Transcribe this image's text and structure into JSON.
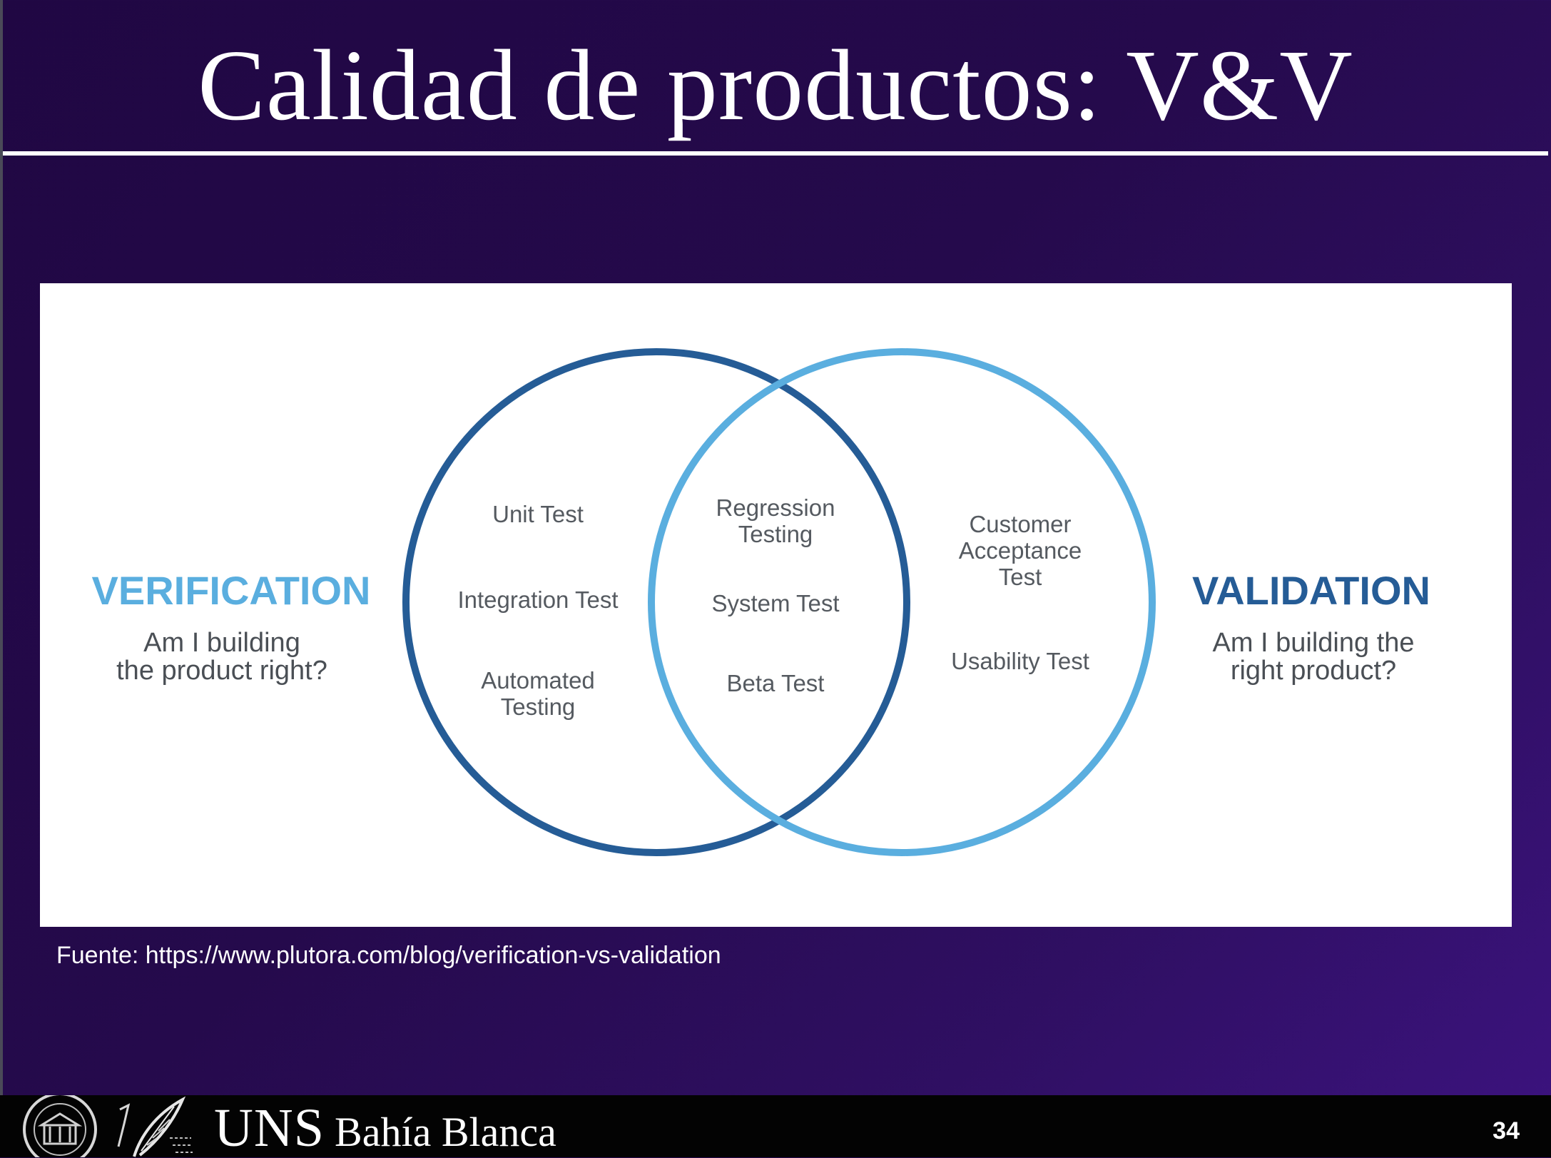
{
  "slide": {
    "title": "Calidad de productos: V&V",
    "source": "Fuente: https://www.plutora.com/blog/verification-vs-validation",
    "page_number": "34"
  },
  "diagram": {
    "verification": {
      "heading": "VERIFICATION",
      "question_line1": "Am I building",
      "question_line2": "the product right?",
      "color": "#5aaedf",
      "circle_color": "#255c96"
    },
    "validation": {
      "heading": "VALIDATION",
      "question_line1": "Am I building the",
      "question_line2": "right product?",
      "color": "#255c96",
      "circle_color": "#5aaedf"
    },
    "left_only": {
      "unit_test": "Unit Test",
      "integration_test": "Integration Test",
      "automated_line1": "Automated",
      "automated_line2": "Testing"
    },
    "overlap": {
      "regression_line1": "Regression",
      "regression_line2": "Testing",
      "system_test": "System Test",
      "beta_test": "Beta Test"
    },
    "right_only": {
      "customer_line1": "Customer",
      "customer_line2": "Acceptance",
      "customer_line3": "Test",
      "usability_test": "Usability Test"
    }
  },
  "footer": {
    "brand": "UNS",
    "city": "Bahía Blanca"
  }
}
